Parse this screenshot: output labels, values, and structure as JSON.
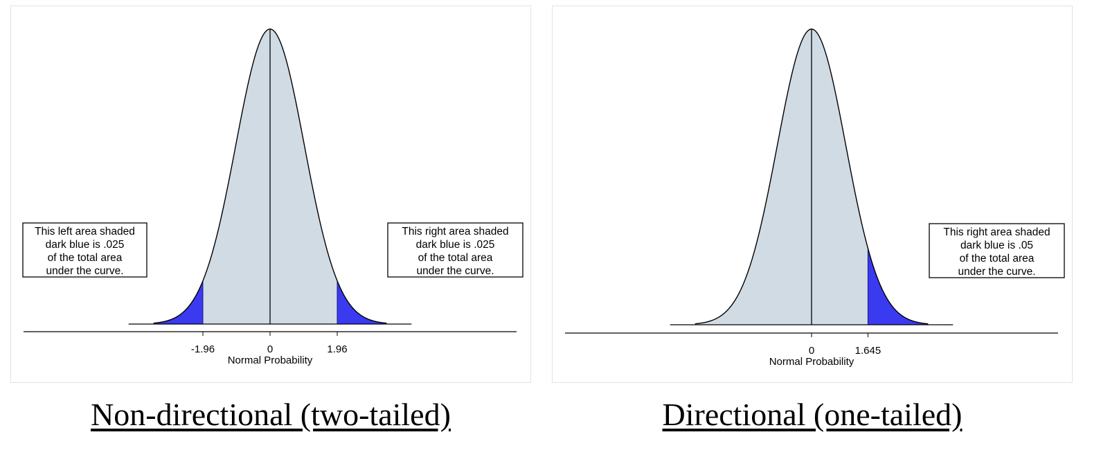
{
  "captions": {
    "left": "Non-directional (two-tailed)",
    "right": "Directional (one-tailed)"
  },
  "colors": {
    "body_fill": "#d0dbe4",
    "tail_fill": "#3a3af0",
    "curve": "#000000",
    "panel_border": "#dde3ec"
  },
  "chart_data": [
    {
      "type": "area",
      "distribution": "standard normal",
      "xlabel": "Normal Probability",
      "ylabel": "",
      "xlim": [
        -3.4,
        3.4
      ],
      "mean": 0,
      "x_ticks": [
        "-1.96",
        "0",
        "1.96"
      ],
      "x_tick_values": [
        -1.96,
        0,
        1.96
      ],
      "shaded_regions": [
        {
          "from": -3.4,
          "to": -1.96,
          "area": 0.025
        },
        {
          "from": 1.96,
          "to": 3.4,
          "area": 0.025
        }
      ],
      "annotations": [
        {
          "id": "left",
          "lines": [
            "This left area shaded",
            "dark blue is .025",
            "of the total area",
            "under the curve."
          ]
        },
        {
          "id": "right",
          "lines": [
            "This right area shaded",
            "dark blue is .025",
            "of the total area",
            "under the curve."
          ]
        }
      ]
    },
    {
      "type": "area",
      "distribution": "standard normal",
      "xlabel": "Normal Probability",
      "ylabel": "",
      "xlim": [
        -3.4,
        3.4
      ],
      "mean": 0,
      "x_ticks": [
        "0",
        "1.645"
      ],
      "x_tick_values": [
        0,
        1.645
      ],
      "shaded_regions": [
        {
          "from": 1.645,
          "to": 3.4,
          "area": 0.05
        }
      ],
      "annotations": [
        {
          "id": "right",
          "lines": [
            "This right area shaded",
            "dark blue is .05",
            "of the total area",
            "under the curve."
          ]
        }
      ]
    }
  ]
}
